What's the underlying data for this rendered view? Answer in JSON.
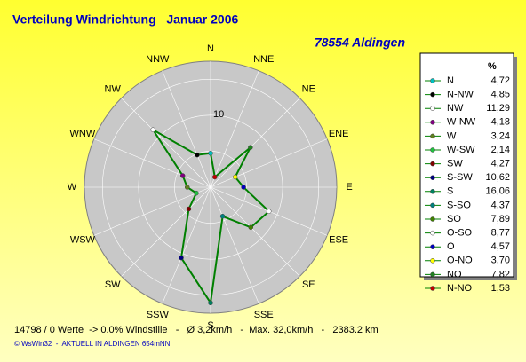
{
  "chart_data": {
    "type": "radar",
    "title": "Verteilung Windrichtung   Januar 2006",
    "subtitle": "78554 Aldingen",
    "categories": [
      "N",
      "NNE",
      "NE",
      "ENE",
      "E",
      "ESE",
      "SE",
      "SSE",
      "S",
      "SSW",
      "SW",
      "WSW",
      "W",
      "WNW",
      "NW",
      "NNW"
    ],
    "legend_header": "%",
    "series": [
      {
        "name": "N",
        "color": "#00c0c0",
        "value": 4.72,
        "value_label": "4,72"
      },
      {
        "name": "N-NW",
        "color": "#000000",
        "value": 4.85,
        "value_label": "4,85"
      },
      {
        "name": "NW",
        "color": "#ffffff",
        "value": 11.29,
        "value_label": "11,29"
      },
      {
        "name": "W-NW",
        "color": "#800080",
        "value": 4.18,
        "value_label": "4,18"
      },
      {
        "name": "W",
        "color": "#608020",
        "value": 3.24,
        "value_label": "3,24"
      },
      {
        "name": "W-SW",
        "color": "#20c040",
        "value": 2.14,
        "value_label": "2,14"
      },
      {
        "name": "SW",
        "color": "#800000",
        "value": 4.27,
        "value_label": "4,27"
      },
      {
        "name": "S-SW",
        "color": "#000080",
        "value": 10.62,
        "value_label": "10,62"
      },
      {
        "name": "S",
        "color": "#008060",
        "value": 16.06,
        "value_label": "16,06"
      },
      {
        "name": "S-SO",
        "color": "#008080",
        "value": 4.37,
        "value_label": "4,37"
      },
      {
        "name": "SO",
        "color": "#408000",
        "value": 7.89,
        "value_label": "7,89"
      },
      {
        "name": "O-SO",
        "color": "#ffffff",
        "value": 8.77,
        "value_label": "8,77"
      },
      {
        "name": "O",
        "color": "#0000c0",
        "value": 4.57,
        "value_label": "4,57"
      },
      {
        "name": "O-NO",
        "color": "#ffff00",
        "value": 3.7,
        "value_label": "3,70"
      },
      {
        "name": "NO",
        "color": "#208020",
        "value": 7.82,
        "value_label": "7,82"
      },
      {
        "name": "N-NO",
        "color": "#c00000",
        "value": 1.53,
        "value_label": "1,53"
      }
    ],
    "line_color": "#008000",
    "rlim": [
      0,
      17.5
    ],
    "rgrid": [
      5,
      10,
      15
    ],
    "rticks": [
      10
    ],
    "footer": "14798 / 0 Werte  -> 0.0% Windstille   -   Ø 3,2km/h   -  Max. 32,0km/h   -   2383.2 km",
    "credit": "© WsWin32  -  AKTUELL IN ALDINGEN 654mNN"
  }
}
